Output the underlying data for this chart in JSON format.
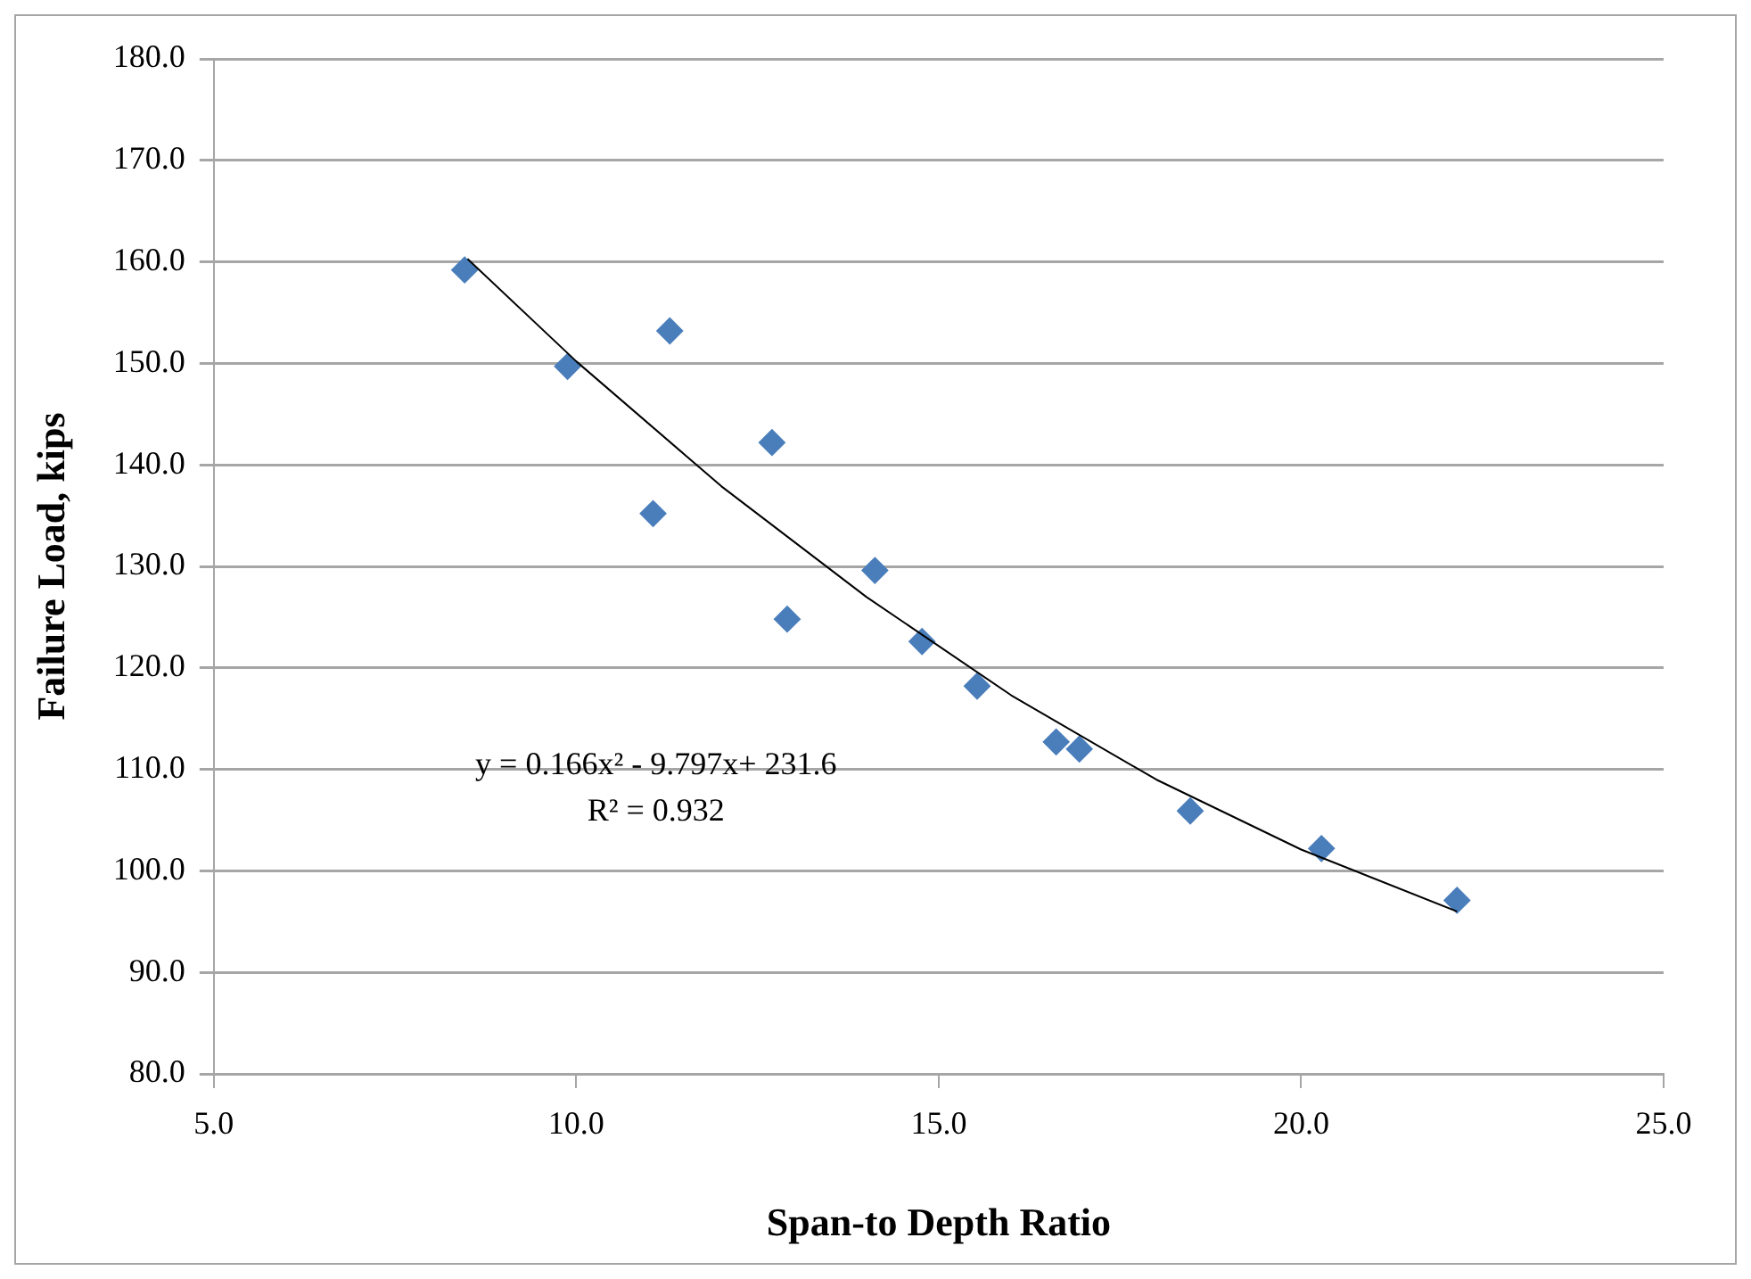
{
  "chart_data": {
    "type": "scatter",
    "xlabel": "Span-to Depth Ratio",
    "ylabel": "Failure Load, kips",
    "xlim": [
      5,
      25
    ],
    "xticks": [
      {
        "value": 5,
        "label": "5.0"
      },
      {
        "value": 10,
        "label": "10.0"
      },
      {
        "value": 15,
        "label": "15.0"
      },
      {
        "value": 20,
        "label": "20.0"
      },
      {
        "value": 25,
        "label": "25.0"
      }
    ],
    "ylim": [
      80,
      180
    ],
    "yticks": [
      {
        "value": 80,
        "label": "80.0"
      },
      {
        "value": 90,
        "label": "90.0"
      },
      {
        "value": 100,
        "label": "100.0"
      },
      {
        "value": 110,
        "label": "110.0"
      },
      {
        "value": 120,
        "label": "120.0"
      },
      {
        "value": 130,
        "label": "130.0"
      },
      {
        "value": 140,
        "label": "140.0"
      },
      {
        "value": 150,
        "label": "150.0"
      },
      {
        "value": 160,
        "label": "160.0"
      },
      {
        "value": 170,
        "label": "170.0"
      },
      {
        "value": 180,
        "label": "180.0"
      }
    ],
    "grid": "y",
    "marker": "diamond",
    "legend": false,
    "annotations": [
      "y = 0.166x² - 9.797x+ 231.6",
      "R² = 0.932"
    ],
    "series": [
      {
        "type": "scatter",
        "color": "#4a7ebb",
        "x": [
          8.46,
          9.88,
          11.29,
          12.7,
          11.06,
          14.12,
          12.91,
          14.77,
          15.53,
          16.62,
          16.94,
          18.47,
          20.28,
          22.15
        ],
        "values": [
          159.2,
          149.7,
          153.2,
          142.2,
          135.2,
          129.6,
          124.8,
          122.6,
          118.2,
          112.7,
          112.0,
          105.9,
          102.2,
          97.1
        ]
      },
      {
        "type": "line",
        "color": "#000000",
        "line_style": "solid",
        "marker": "none",
        "x": [
          8.5,
          10,
          12,
          14,
          16,
          18,
          20,
          22.15
        ],
        "values": [
          160.3,
          150.2,
          137.9,
          127.0,
          117.3,
          109.0,
          102.1,
          96.0
        ]
      }
    ]
  }
}
